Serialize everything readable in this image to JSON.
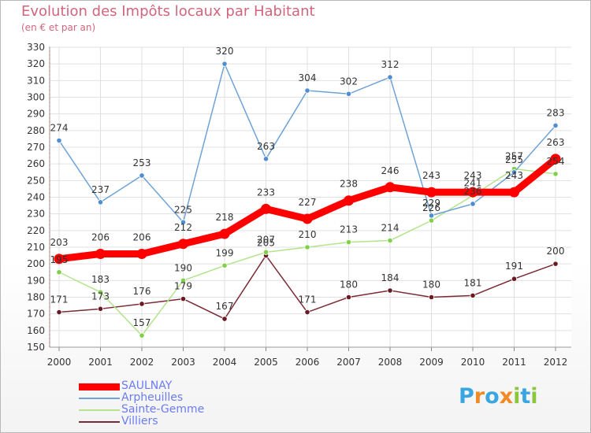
{
  "header": {
    "title": "Evolution des Impôts locaux par Habitant",
    "subtitle": "(en € et par an)"
  },
  "logo": {
    "letters": [
      "P",
      "r",
      "o",
      "x",
      "i",
      "t",
      "i"
    ],
    "colors": [
      "#3aa6e0",
      "#f08a24",
      "#3aa6e0",
      "#f08a24",
      "#8cc63f",
      "#3aa6e0",
      "#8cc63f"
    ]
  },
  "chart_data": {
    "type": "line",
    "title": "Evolution des Impôts locaux par Habitant",
    "subtitle": "(en € et par an)",
    "xlabel": "",
    "ylabel": "",
    "x": [
      "2000",
      "2001",
      "2002",
      "2003",
      "2004",
      "2005",
      "2006",
      "2007",
      "2008",
      "2009",
      "2010",
      "2011",
      "2012"
    ],
    "ylim": [
      150,
      330
    ],
    "yticks": [
      150,
      160,
      170,
      180,
      190,
      200,
      210,
      220,
      230,
      240,
      250,
      260,
      270,
      280,
      290,
      300,
      310,
      320,
      330
    ],
    "grid": true,
    "legend_position": "bottom-left",
    "series": [
      {
        "name": "SAULNAY",
        "color": "#ff0000",
        "marker_color": "#ff0000",
        "values": [
          203,
          206,
          206,
          212,
          218,
          233,
          227,
          238,
          246,
          243,
          243,
          243,
          263
        ]
      },
      {
        "name": "Arpheuilles",
        "color": "#6fa3d6",
        "marker_color": "#4f8fd0",
        "values": [
          274,
          237,
          253,
          225,
          320,
          263,
          304,
          302,
          312,
          229,
          236,
          255,
          283
        ]
      },
      {
        "name": "Sainte-Gemme",
        "color": "#b3e48b",
        "marker_color": "#7fd14a",
        "values": [
          195,
          183,
          157,
          190,
          199,
          207,
          210,
          213,
          214,
          226,
          241,
          257,
          254
        ]
      },
      {
        "name": "Villiers",
        "color": "#7a2b36",
        "marker_color": "#6a1a22",
        "values": [
          171,
          173,
          176,
          179,
          167,
          205,
          171,
          180,
          184,
          180,
          181,
          191,
          200
        ]
      }
    ],
    "data_labels": {
      "SAULNAY": [
        "203",
        "206",
        "206",
        "212",
        "218",
        "233",
        "227",
        "238",
        "246",
        "243",
        "243",
        "243",
        "263"
      ],
      "Arpheuilles": [
        "274",
        "237",
        "253",
        "225",
        "320",
        "263",
        "304",
        "302",
        "312",
        "229",
        "236",
        "255",
        "283"
      ],
      "Sainte-Gemme": [
        "195",
        "183",
        "157",
        "190",
        "199",
        "207",
        "210",
        "213",
        "214",
        "226",
        "241",
        "257",
        "254"
      ],
      "Villiers": [
        "171",
        "173",
        "176",
        "179",
        "167",
        "205",
        "171",
        "180",
        "184",
        "180",
        "181",
        "191",
        "200"
      ]
    }
  }
}
